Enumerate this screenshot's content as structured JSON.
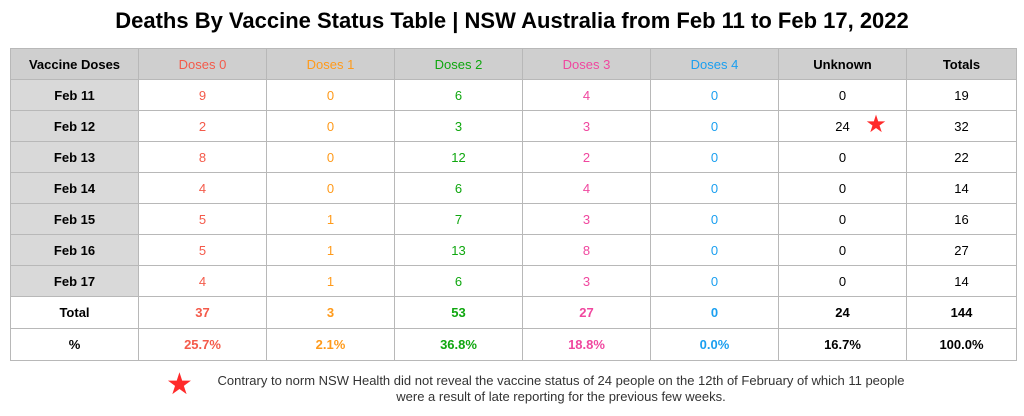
{
  "title": "Deaths By Vaccine Status Table | NSW Australia from Feb 11 to Feb 17, 2022",
  "colors": {
    "doses0": "#f45a4a",
    "doses1": "#ff9a1a",
    "doses2": "#0fa70f",
    "doses3": "#f0479f",
    "doses4": "#1a9ff0",
    "neutral": "#000000",
    "star": "#ff2a2a"
  },
  "chart_data": {
    "type": "table",
    "title": "Deaths By Vaccine Status Table | NSW Australia from Feb 11 to Feb 17, 2022",
    "columns": [
      "Vaccine Doses",
      "Doses 0",
      "Doses 1",
      "Doses 2",
      "Doses 3",
      "Doses 4",
      "Unknown",
      "Totals"
    ],
    "rows": [
      {
        "label": "Feb 11",
        "values": [
          "9",
          "0",
          "6",
          "4",
          "0",
          "0",
          "19"
        ],
        "star": false
      },
      {
        "label": "Feb 12",
        "values": [
          "2",
          "0",
          "3",
          "3",
          "0",
          "24",
          "32"
        ],
        "star": true
      },
      {
        "label": "Feb 13",
        "values": [
          "8",
          "0",
          "12",
          "2",
          "0",
          "0",
          "22"
        ],
        "star": false
      },
      {
        "label": "Feb 14",
        "values": [
          "4",
          "0",
          "6",
          "4",
          "0",
          "0",
          "14"
        ],
        "star": false
      },
      {
        "label": "Feb 15",
        "values": [
          "5",
          "1",
          "7",
          "3",
          "0",
          "0",
          "16"
        ],
        "star": false
      },
      {
        "label": "Feb 16",
        "values": [
          "5",
          "1",
          "13",
          "8",
          "0",
          "0",
          "27"
        ],
        "star": false
      },
      {
        "label": "Feb 17",
        "values": [
          "4",
          "1",
          "6",
          "3",
          "0",
          "0",
          "14"
        ],
        "star": false
      }
    ],
    "totals": {
      "label": "Total",
      "values": [
        "37",
        "3",
        "53",
        "27",
        "0",
        "24",
        "144"
      ]
    },
    "percent": {
      "label": "%",
      "values": [
        "25.7%",
        "2.1%",
        "36.8%",
        "18.8%",
        "0.0%",
        "16.7%",
        "100.0%"
      ]
    }
  },
  "footnote": {
    "text": "Contrary to norm NSW Health did not reveal the vaccine status of 24 people on the 12th of February of which 11 people were a result of late reporting for the previous few weeks.",
    "icon": "star-icon"
  }
}
